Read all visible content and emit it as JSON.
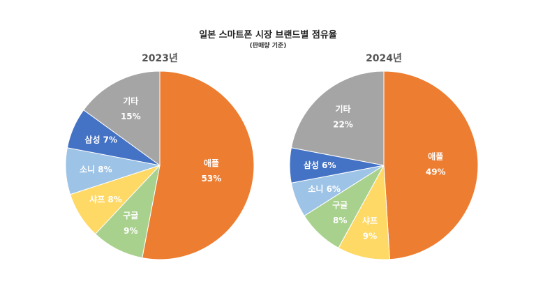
{
  "chart_data": {
    "type": "pie",
    "title": "일본 스마트폰 시장 브랜드별 점유율",
    "subtitle": "(판매량 기준)",
    "colors": {
      "애플": "#ED7D31",
      "구글": "#A9D18E",
      "샤프": "#FFD966",
      "소니": "#9DC3E6",
      "삼성": "#4472C4",
      "기타": "#A5A5A5"
    },
    "pies": [
      {
        "name": "2023년",
        "slices": [
          {
            "label": "애플",
            "value": 53,
            "display": "53%"
          },
          {
            "label": "구글",
            "value": 9,
            "display": "9%"
          },
          {
            "label": "샤프",
            "value": 8,
            "display": "8%"
          },
          {
            "label": "소니",
            "value": 8,
            "display": "8%"
          },
          {
            "label": "삼성",
            "value": 7,
            "display": "7%"
          },
          {
            "label": "기타",
            "value": 15,
            "display": "15%"
          }
        ]
      },
      {
        "name": "2024년",
        "slices": [
          {
            "label": "애플",
            "value": 49,
            "display": "49%"
          },
          {
            "label": "샤프",
            "value": 9,
            "display": "9%"
          },
          {
            "label": "구글",
            "value": 8,
            "display": "8%"
          },
          {
            "label": "소니",
            "value": 6,
            "display": "6%"
          },
          {
            "label": "삼성",
            "value": 6,
            "display": "6%"
          },
          {
            "label": "기타",
            "value": 22,
            "display": "22%"
          }
        ]
      }
    ]
  }
}
